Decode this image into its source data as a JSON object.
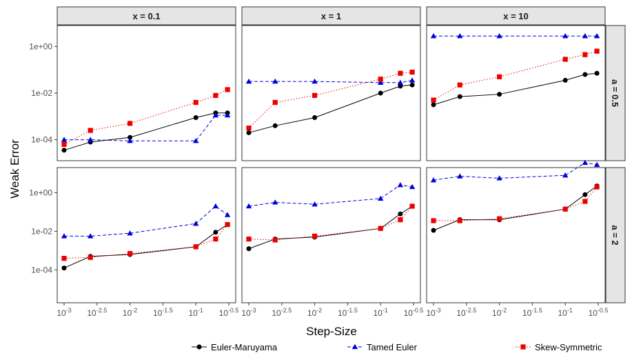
{
  "chart_data": {
    "type": "line",
    "facet_cols": [
      "x = 0.1",
      "x = 1",
      "x = 10"
    ],
    "facet_rows": [
      "a = 0.5",
      "a = 2"
    ],
    "xlabel": "Step-Size",
    "ylabel": "Weak Error",
    "x_scale": "log10",
    "y_scale": "log10",
    "xlim_log10": [
      -3,
      -0.5
    ],
    "x_ticks": [
      {
        "base": "10",
        "exp": "-3"
      },
      {
        "base": "10",
        "exp": "-2.5"
      },
      {
        "base": "10",
        "exp": "-2"
      },
      {
        "base": "10",
        "exp": "-1.5"
      },
      {
        "base": "10",
        "exp": "-1"
      },
      {
        "base": "10",
        "exp": "-0.5"
      }
    ],
    "y_ticks": [
      "1e+00",
      "1e-02",
      "1e-04"
    ],
    "x_log10": [
      -3,
      -2.6,
      -2,
      -1,
      -0.7,
      -0.52
    ],
    "series_styles": [
      {
        "name": "Euler-Maruyama",
        "color": "#000000",
        "marker": "circle",
        "line": "solid"
      },
      {
        "name": "Tamed Euler",
        "color": "#0000dd",
        "marker": "triangle",
        "line": "dashed"
      },
      {
        "name": "Skew-Symmetric",
        "color": "#ee0000",
        "marker": "square",
        "line": "dotted"
      }
    ],
    "panels": [
      {
        "row": 0,
        "col": 0,
        "ylim_log10": [
          -4.9,
          0.9
        ],
        "series": [
          [
            -4.45,
            -4.1,
            -3.9,
            -3.05,
            -2.85,
            -2.85
          ],
          [
            -4.0,
            -4.0,
            -4.05,
            -4.05,
            -2.95,
            -2.95
          ],
          [
            -4.2,
            -3.6,
            -3.3,
            -2.4,
            -2.1,
            -1.85
          ]
        ]
      },
      {
        "row": 0,
        "col": 1,
        "ylim_log10": [
          -4.9,
          0.9
        ],
        "series": [
          [
            -3.7,
            -3.4,
            -3.05,
            -2.0,
            -1.7,
            -1.65
          ],
          [
            -1.5,
            -1.5,
            -1.5,
            -1.55,
            -1.55,
            -1.45
          ],
          [
            -3.5,
            -2.4,
            -2.1,
            -1.4,
            -1.15,
            -1.1
          ]
        ]
      },
      {
        "row": 0,
        "col": 2,
        "ylim_log10": [
          -4.9,
          0.9
        ],
        "series": [
          [
            -2.5,
            -2.15,
            -2.05,
            -1.45,
            -1.2,
            -1.15
          ],
          [
            0.45,
            0.45,
            0.45,
            0.45,
            0.45,
            0.45
          ],
          [
            -2.3,
            -1.65,
            -1.3,
            -0.55,
            -0.35,
            -0.2
          ]
        ]
      },
      {
        "row": 1,
        "col": 0,
        "ylim_log10": [
          -5.7,
          1.3
        ],
        "series": [
          [
            -3.9,
            -3.3,
            -3.2,
            -2.8,
            -2.05,
            -1.65
          ],
          [
            -2.25,
            -2.25,
            -2.1,
            -1.6,
            -0.7,
            -1.15
          ],
          [
            -3.4,
            -3.35,
            -3.15,
            -2.8,
            -2.4,
            -1.65
          ]
        ]
      },
      {
        "row": 1,
        "col": 1,
        "ylim_log10": [
          -5.7,
          1.3
        ],
        "series": [
          [
            -2.9,
            -2.4,
            -2.3,
            -1.85,
            -1.1,
            -0.7
          ],
          [
            -0.7,
            -0.5,
            -0.6,
            -0.3,
            0.4,
            0.3
          ],
          [
            -2.4,
            -2.45,
            -2.25,
            -1.85,
            -1.4,
            -0.7
          ]
        ]
      },
      {
        "row": 1,
        "col": 2,
        "ylim_log10": [
          -5.7,
          1.3
        ],
        "series": [
          [
            -1.95,
            -1.4,
            -1.4,
            -0.85,
            -0.1,
            0.35
          ],
          [
            0.65,
            0.85,
            0.75,
            0.9,
            1.55,
            1.45
          ],
          [
            -1.45,
            -1.45,
            -1.35,
            -0.85,
            -0.45,
            0.3
          ]
        ]
      }
    ]
  }
}
